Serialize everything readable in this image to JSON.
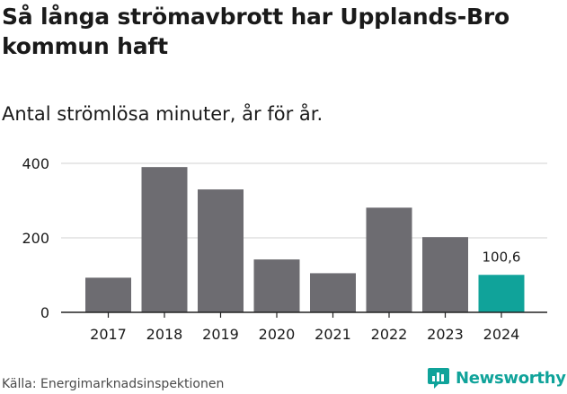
{
  "title": "Så långa strömavbrott har Upplands-Bro kommun haft",
  "subtitle": "Antal strömlösa minuter, år för år.",
  "source": "Källa: Energimarknadsinspektionen",
  "brand": {
    "name": "Newsworthy",
    "icon": "newsworthy-logo-icon",
    "color": "#10a39a"
  },
  "colors": {
    "bar": "#6d6c71",
    "highlight": "#10a39a",
    "grid": "#d9d9d9",
    "axis": "#222222",
    "text": "#1a1a1a"
  },
  "chart_data": {
    "type": "bar",
    "categories": [
      "2017",
      "2018",
      "2019",
      "2020",
      "2021",
      "2022",
      "2023",
      "2024"
    ],
    "values": [
      93,
      390,
      330,
      142,
      105,
      281,
      202,
      100.6
    ],
    "highlight_index": 7,
    "data_labels": [
      {
        "index": 7,
        "text": "100,6"
      }
    ],
    "yticks": [
      0,
      200,
      400
    ],
    "ylim": [
      0,
      400
    ],
    "grid": true,
    "title": "Så långa strömavbrott har Upplands-Bro kommun haft",
    "xlabel": "",
    "ylabel": "Antal strömlösa minuter"
  }
}
